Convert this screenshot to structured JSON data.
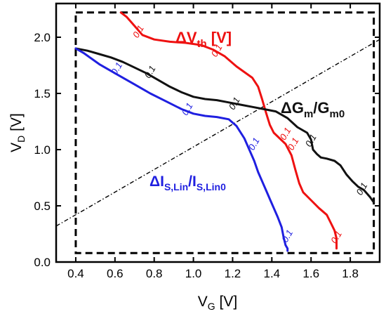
{
  "chart_data": {
    "type": "line",
    "xlabel": {
      "main": "V",
      "sub": "G",
      "unit": " [V]"
    },
    "ylabel": {
      "main": "V",
      "sub": "D",
      "unit": " [V]"
    },
    "xlim": [
      0.3,
      1.95
    ],
    "ylim": [
      0.0,
      2.3
    ],
    "xticks": [
      "0.4",
      "0.6",
      "0.8",
      "1.0",
      "1.2",
      "1.4",
      "1.6",
      "1.8"
    ],
    "xtick_values": [
      0.4,
      0.6,
      0.8,
      1.0,
      1.2,
      1.4,
      1.6,
      1.8
    ],
    "yticks": [
      "0.0",
      "0.5",
      "1.0",
      "1.5",
      "2.0"
    ],
    "ytick_values": [
      0.0,
      0.5,
      1.0,
      1.5,
      2.0
    ],
    "grid": false,
    "contour_value_label": "0.1",
    "diagonal_line": {
      "x": [
        0.3,
        1.95
      ],
      "y": [
        0.32,
        1.98
      ],
      "color": "#000000",
      "style": "dashdot"
    },
    "region_box": {
      "x": [
        0.4,
        1.92
      ],
      "y": [
        0.08,
        2.22
      ]
    },
    "series": [
      {
        "annotation": {
          "main": "ΔV",
          "sub": "th",
          "unit": " [V]"
        },
        "color": "#ee1111",
        "x": [
          0.63,
          0.66,
          0.7,
          0.74,
          0.8,
          0.88,
          0.96,
          1.04,
          1.1,
          1.16,
          1.22,
          1.26,
          1.3,
          1.33,
          1.35,
          1.37,
          1.39,
          1.41,
          1.44,
          1.47,
          1.5,
          1.52,
          1.54,
          1.56,
          1.6,
          1.64,
          1.68,
          1.7,
          1.72,
          1.73,
          1.73
        ],
        "y": [
          2.22,
          2.18,
          2.1,
          2.02,
          1.98,
          1.96,
          1.95,
          1.93,
          1.89,
          1.83,
          1.74,
          1.69,
          1.64,
          1.56,
          1.45,
          1.33,
          1.22,
          1.15,
          1.1,
          1.05,
          0.95,
          0.82,
          0.7,
          0.62,
          0.55,
          0.48,
          0.42,
          0.35,
          0.28,
          0.21,
          0.12
        ],
        "label_x": [
          0.72,
          1.12,
          1.47,
          1.51,
          1.73
        ],
        "label_y": [
          2.05,
          1.88,
          1.14,
          1.05,
          0.22
        ]
      },
      {
        "annotation": {
          "main": "ΔG",
          "sub1": "m",
          "mid": "/G",
          "sub2": "m0"
        },
        "color": "#111111",
        "x": [
          0.4,
          0.46,
          0.52,
          0.58,
          0.64,
          0.7,
          0.76,
          0.82,
          0.88,
          0.94,
          1.0,
          1.06,
          1.12,
          1.18,
          1.24,
          1.3,
          1.36,
          1.42,
          1.48,
          1.53,
          1.58,
          1.6,
          1.61,
          1.63,
          1.65,
          1.68,
          1.72,
          1.75,
          1.78,
          1.81,
          1.84,
          1.87,
          1.9,
          1.92
        ],
        "y": [
          1.9,
          1.88,
          1.85,
          1.82,
          1.78,
          1.73,
          1.68,
          1.62,
          1.56,
          1.51,
          1.47,
          1.45,
          1.44,
          1.42,
          1.4,
          1.38,
          1.36,
          1.34,
          1.28,
          1.2,
          1.15,
          1.09,
          1.0,
          0.96,
          0.93,
          0.92,
          0.9,
          0.86,
          0.78,
          0.72,
          0.67,
          0.64,
          0.58,
          0.53
        ],
        "label_x": [
          0.78,
          1.21,
          1.6,
          1.86
        ],
        "label_y": [
          1.69,
          1.41,
          1.08,
          0.65
        ]
      },
      {
        "annotation": {
          "main": "ΔI",
          "sub1": "S,Lin",
          "mid": "/I",
          "sub2": "S,Lin0"
        },
        "color": "#1f1fe0",
        "x": [
          0.4,
          0.44,
          0.48,
          0.52,
          0.56,
          0.62,
          0.7,
          0.78,
          0.86,
          0.94,
          1.0,
          1.06,
          1.12,
          1.18,
          1.22,
          1.26,
          1.29,
          1.31,
          1.33,
          1.35,
          1.37,
          1.39,
          1.41,
          1.43,
          1.45,
          1.46,
          1.47,
          1.48,
          1.48
        ],
        "y": [
          1.9,
          1.86,
          1.81,
          1.76,
          1.72,
          1.66,
          1.58,
          1.5,
          1.43,
          1.36,
          1.32,
          1.3,
          1.29,
          1.27,
          1.21,
          1.1,
          0.98,
          0.9,
          0.8,
          0.72,
          0.64,
          0.56,
          0.48,
          0.4,
          0.31,
          0.22,
          0.15,
          0.12,
          0.1
        ],
        "label_x": [
          0.61,
          0.97,
          1.31,
          1.48
        ],
        "label_y": [
          1.72,
          1.36,
          1.05,
          0.23
        ]
      }
    ]
  }
}
